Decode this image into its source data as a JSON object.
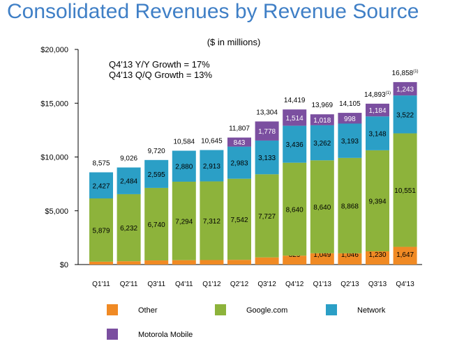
{
  "page": {
    "title": "Consolidated Revenues by Revenue Source"
  },
  "chart_data": {
    "type": "bar",
    "stacked": true,
    "subtitle": "($ in millions)",
    "annotations": [
      "Q4'13 Y/Y Growth = 17%",
      "Q4'13 Q/Q Growth = 13%"
    ],
    "categories": [
      "Q1'11",
      "Q2'11",
      "Q3'11",
      "Q4'11",
      "Q1'12",
      "Q2'12",
      "Q3'12",
      "Q4'12",
      "Q1'13",
      "Q2'13",
      "Q3'13",
      "Q4'13"
    ],
    "series": [
      {
        "name": "Other",
        "color": "#f08a24",
        "values": [
          269,
          310,
          385,
          410,
          420,
          439,
          666,
          829,
          1049,
          1046,
          1230,
          1647
        ]
      },
      {
        "name": "Google.com",
        "color": "#8db33b",
        "values": [
          5879,
          6232,
          6740,
          7294,
          7312,
          7542,
          7727,
          8640,
          8640,
          8868,
          9394,
          10551
        ]
      },
      {
        "name": "Network",
        "color": "#2b9fc6",
        "values": [
          2427,
          2484,
          2595,
          2880,
          2913,
          2983,
          3133,
          3436,
          3262,
          3193,
          3148,
          3522
        ]
      },
      {
        "name": "Motorola Mobile",
        "color": "#7b4fa0",
        "values": [
          null,
          null,
          null,
          null,
          null,
          843,
          1778,
          1514,
          1018,
          998,
          1184,
          1243
        ]
      }
    ],
    "totals": [
      "8,575",
      "9,026",
      "9,720",
      "10,584",
      "10,645",
      "11,807",
      "13,304",
      "14,419",
      "13,969",
      "14,105",
      "14,893",
      "16,858"
    ],
    "total_superscripts": [
      "",
      "",
      "",
      "",
      "",
      "",
      "",
      "",
      "",
      "",
      "(1)",
      "(1)"
    ],
    "yticks": [
      {
        "value": 0,
        "label": "$0"
      },
      {
        "value": 5000,
        "label": "$5,000"
      },
      {
        "value": 10000,
        "label": "$10,000"
      },
      {
        "value": 15000,
        "label": "$15,000"
      },
      {
        "value": 20000,
        "label": "$20,000"
      }
    ],
    "ylim": [
      0,
      20000
    ],
    "xlabel": "",
    "ylabel": "",
    "legend_position": "bottom"
  }
}
